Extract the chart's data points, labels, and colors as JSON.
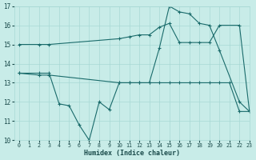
{
  "bg_color": "#c8ece8",
  "line_color": "#1a6b6b",
  "grid_color": "#a8d8d4",
  "xlabel": "Humidex (Indice chaleur)",
  "xlim": [
    -0.5,
    23
  ],
  "ylim": [
    10,
    17
  ],
  "yticks": [
    10,
    11,
    12,
    13,
    14,
    15,
    16,
    17
  ],
  "xticks": [
    0,
    1,
    2,
    3,
    4,
    5,
    6,
    7,
    8,
    9,
    10,
    11,
    12,
    13,
    14,
    15,
    16,
    17,
    18,
    19,
    20,
    21,
    22,
    23
  ],
  "line1_x": [
    0,
    2,
    3,
    10,
    11,
    12,
    13,
    14,
    15,
    16,
    17,
    18,
    19,
    20,
    22,
    23
  ],
  "line1_y": [
    15.0,
    15.0,
    15.0,
    15.3,
    15.4,
    15.5,
    15.5,
    15.9,
    16.1,
    15.1,
    15.1,
    15.1,
    15.1,
    16.0,
    16.0,
    11.5
  ],
  "line2_x": [
    0,
    2,
    3,
    10,
    11,
    12,
    13,
    14,
    15,
    16,
    17,
    18,
    19,
    20,
    22,
    23
  ],
  "line2_y": [
    13.5,
    13.4,
    13.4,
    13.0,
    13.0,
    13.0,
    13.0,
    14.8,
    17.0,
    16.7,
    16.6,
    16.1,
    16.0,
    14.7,
    12.0,
    11.5
  ],
  "line3_x": [
    0,
    2,
    3,
    4,
    5,
    6,
    7,
    8,
    9,
    10,
    11,
    12,
    13,
    14,
    15,
    16,
    17,
    18,
    19,
    20,
    21,
    22,
    23
  ],
  "line3_y": [
    13.5,
    13.5,
    13.5,
    11.9,
    11.8,
    10.8,
    10.0,
    12.0,
    11.6,
    13.0,
    13.0,
    13.0,
    13.0,
    13.0,
    13.0,
    13.0,
    13.0,
    13.0,
    13.0,
    13.0,
    13.0,
    11.5,
    11.5
  ]
}
